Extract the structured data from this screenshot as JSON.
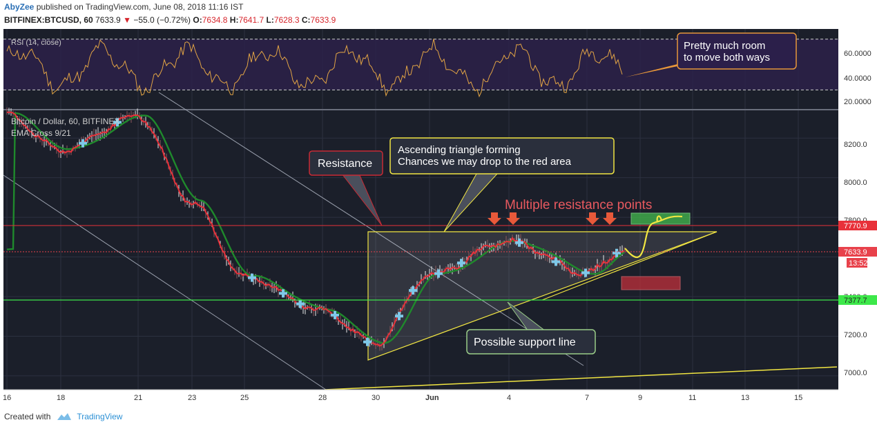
{
  "header": {
    "author": "AbyZee",
    "published_text": "published on TradingView.com, June 08, 2018 11:16 IST",
    "symbol": "BITFINEX:BTCUSD, 60",
    "last": "7633.9",
    "change": "−55.0 (−0.72%)",
    "o_label": "O:",
    "o": "7634.8",
    "h_label": "H:",
    "h": "7641.7",
    "l_label": "L:",
    "l": "7628.3",
    "c_label": "C:",
    "c": "7633.9"
  },
  "rsi_panel": {
    "label": "RSI (14, close)",
    "ticks": [
      "60.0000",
      "40.0000",
      "20.0000"
    ],
    "levels": [
      70,
      30
    ]
  },
  "main_panel": {
    "title": "Bitcoin / Dollar, 60, BITFINEX",
    "indicator": "EMA Cross 9/21",
    "price_ticks": [
      "8200.0",
      "8000.0",
      "7800.0",
      "7400.0",
      "7200.0",
      "7000.0"
    ],
    "resistance_badge": "7770.9",
    "last_badge": "7633.9",
    "timer_badge": "13:52",
    "support_badge": "7377.7",
    "colors": {
      "resistance": "#e8313a",
      "support": "#3de84a",
      "last": "#e8414b",
      "triangle": "#f2e642",
      "ema_fast": "#e8313a",
      "ema_slow": "#1f8a2c"
    }
  },
  "time_axis": [
    "16",
    "18",
    "21",
    "23",
    "25",
    "28",
    "30",
    "Jun",
    "4",
    "7",
    "9",
    "11",
    "13",
    "15"
  ],
  "annotations": {
    "rsi_callout": [
      "Pretty much room",
      "to move both ways"
    ],
    "resistance_callout": "Resistance",
    "triangle_callout": [
      "Ascending triangle forming",
      "Chances we may drop to the red area"
    ],
    "multiple_resistance": "Multiple resistance points",
    "support_callout": "Possible support line"
  },
  "footer": {
    "created_with": "Created with",
    "brand": "TradingView"
  },
  "chart_data": {
    "type": "line",
    "title": "Bitcoin / Dollar, 60, BITFINEX",
    "xlabel": "",
    "ylabel": "",
    "x": [
      "16",
      "18",
      "21",
      "23",
      "25",
      "28",
      "30",
      "Jun",
      "4",
      "7",
      "9"
    ],
    "ylim": [
      6930,
      8340
    ],
    "series": [
      {
        "name": "EMA Cross 9/21",
        "values": [
          8320,
          8140,
          8310,
          7880,
          7500,
          7330,
          7160,
          7510,
          7680,
          7520,
          7634
        ]
      }
    ],
    "levels": {
      "resistance": 7770.9,
      "last": 7633.9,
      "support": 7377.7
    },
    "rsi": {
      "label": "RSI (14, close)",
      "ylim": [
        15,
        78
      ],
      "levels": [
        70,
        30
      ],
      "ticks": [
        60,
        40,
        20
      ]
    }
  }
}
